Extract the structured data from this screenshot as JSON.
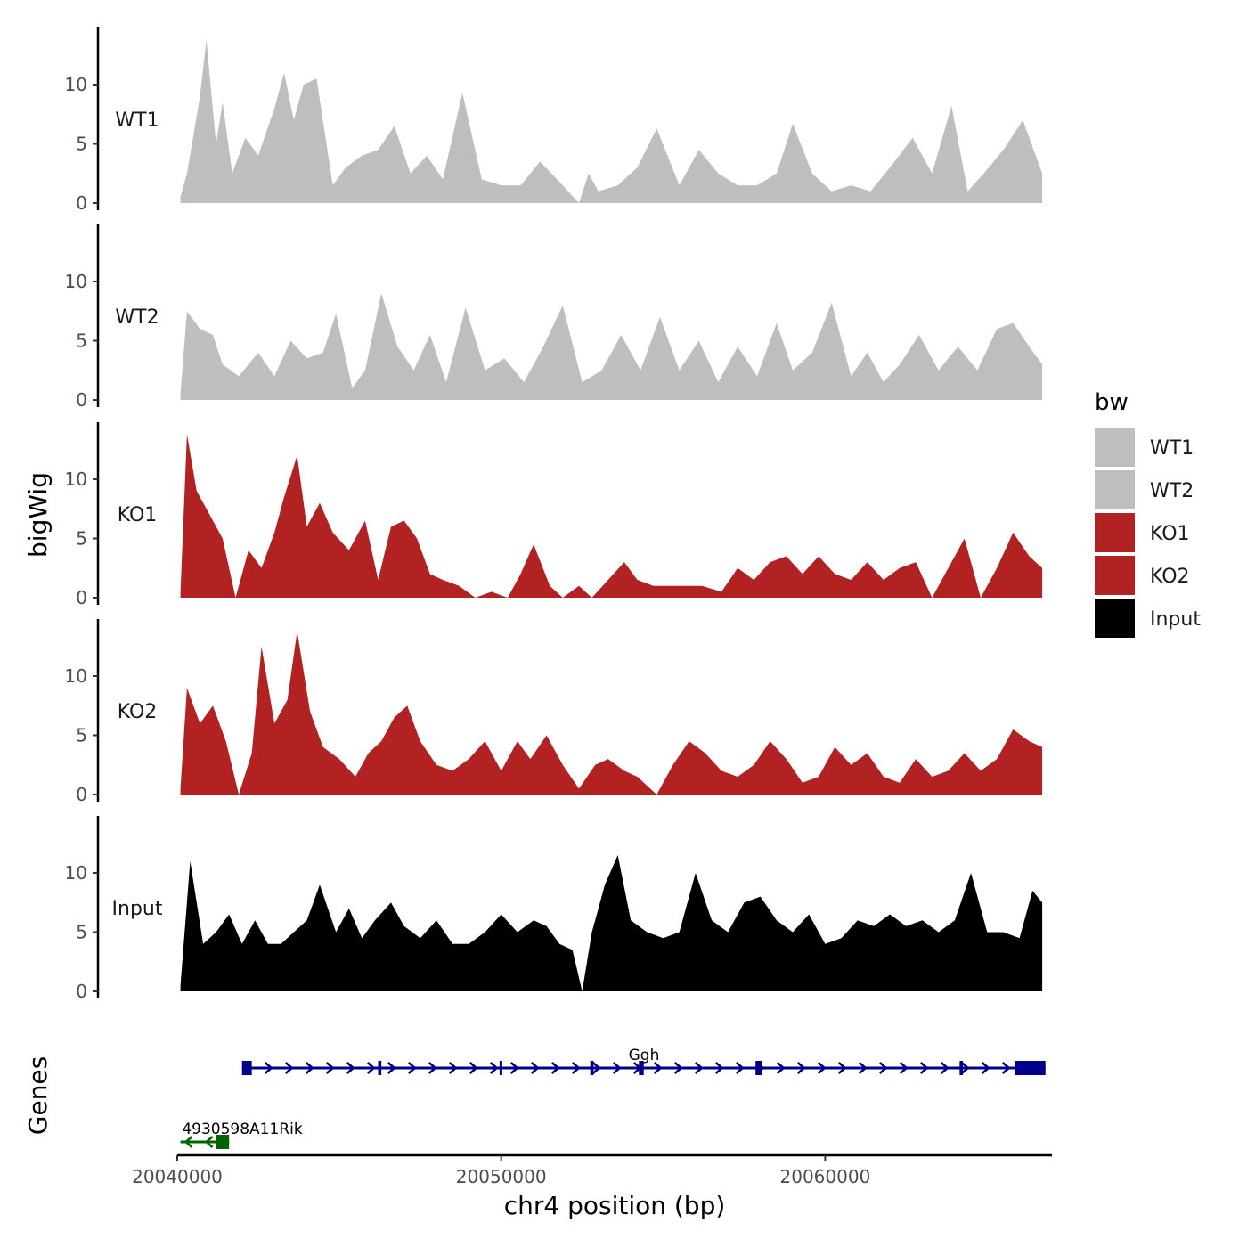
{
  "chart_data": {
    "type": "area",
    "title": "",
    "xlabel": "chr4 position (bp)",
    "ylabel": "bigWig",
    "genes_label": "Genes",
    "xlim": [
      20040000,
      20067000
    ],
    "ylim": [
      0,
      14.5
    ],
    "x_ticks": [
      20040000,
      20050000,
      20060000
    ],
    "x_tick_labels": [
      "20040000",
      "20050000",
      "20060000"
    ],
    "y_ticks": [
      0,
      5,
      10
    ],
    "y_tick_labels": [
      "0",
      "5",
      "10"
    ],
    "legend": {
      "title": "bw",
      "placement": "right",
      "entries": [
        {
          "label": "WT1",
          "color": "#bebebe"
        },
        {
          "label": "WT2",
          "color": "#bebebe"
        },
        {
          "label": "KO1",
          "color": "#b22222"
        },
        {
          "label": "KO2",
          "color": "#b22222"
        },
        {
          "label": "Input",
          "color": "#000000"
        }
      ]
    },
    "series": [
      {
        "name": "WT1",
        "color": "#bebebe",
        "x": [
          20040100,
          20040300,
          20040700,
          20040900,
          20041200,
          20041400,
          20041700,
          20042100,
          20042500,
          20043000,
          20043300,
          20043600,
          20043900,
          20044300,
          20044800,
          20045200,
          20045700,
          20046200,
          20046700,
          20047200,
          20047700,
          20048200,
          20048800,
          20049400,
          20050000,
          20050600,
          20051200,
          20051900,
          20052400,
          20052700,
          20053000,
          20053600,
          20054200,
          20054800,
          20055500,
          20056100,
          20056700,
          20057300,
          20057900,
          20058500,
          20059000,
          20059600,
          20060200,
          20060800,
          20061400,
          20062000,
          20062700,
          20063300,
          20063900,
          20064400,
          20064900,
          20065500,
          20066100,
          20066700
        ],
        "values": [
          0.5,
          2.5,
          9,
          13.8,
          5,
          8.5,
          2.5,
          5.5,
          4,
          8,
          11,
          7,
          10,
          10.5,
          1.5,
          3,
          4,
          4.5,
          6.5,
          2.5,
          4,
          2,
          9.3,
          2,
          1.5,
          1.5,
          3.5,
          1.5,
          0,
          2.5,
          1,
          1.5,
          3,
          6.3,
          1.5,
          4.5,
          2.5,
          1.5,
          1.5,
          2.5,
          6.7,
          2.5,
          1,
          1.5,
          1,
          3,
          5.5,
          2.5,
          8.2,
          1,
          2.5,
          4.5,
          7,
          2.5
        ]
      },
      {
        "name": "WT2",
        "color": "#bebebe",
        "x": [
          20040100,
          20040300,
          20040700,
          20041100,
          20041400,
          20041900,
          20042500,
          20043000,
          20043500,
          20044000,
          20044500,
          20044900,
          20045400,
          20045800,
          20046300,
          20046800,
          20047300,
          20047800,
          20048300,
          20048900,
          20049500,
          20050100,
          20050700,
          20051300,
          20051900,
          20052500,
          20053100,
          20053700,
          20054300,
          20054900,
          20055500,
          20056100,
          20056700,
          20057300,
          20057900,
          20058500,
          20059000,
          20059600,
          20060200,
          20060800,
          20061300,
          20061800,
          20062300,
          20062900,
          20063500,
          20064100,
          20064700,
          20065300,
          20065800,
          20066300,
          20066700
        ],
        "values": [
          0.5,
          7.5,
          6,
          5.5,
          3,
          2,
          4,
          2,
          5,
          3.5,
          4,
          7.3,
          1,
          2.5,
          9,
          4.5,
          2.5,
          5.5,
          1.5,
          7.8,
          2.5,
          3.5,
          1.5,
          4.5,
          8,
          1.5,
          2.5,
          5.5,
          2.5,
          7,
          2.5,
          5,
          1.5,
          4.5,
          2,
          6.5,
          2.5,
          4,
          8.2,
          2,
          4,
          1.5,
          3,
          5.5,
          2.5,
          4.5,
          2.5,
          6,
          6.5,
          4.5,
          3
        ]
      },
      {
        "name": "KO1",
        "color": "#b22222",
        "x": [
          20040100,
          20040300,
          20040600,
          20041000,
          20041400,
          20041800,
          20042200,
          20042600,
          20043000,
          20043300,
          20043700,
          20044000,
          20044400,
          20044800,
          20045300,
          20045800,
          20046200,
          20046600,
          20047000,
          20047400,
          20047800,
          20048200,
          20048700,
          20049200,
          20049700,
          20050200,
          20050600,
          20051000,
          20051500,
          20051900,
          20052400,
          20052800,
          20053300,
          20053800,
          20054200,
          20054700,
          20055200,
          20055700,
          20056200,
          20056800,
          20057300,
          20057800,
          20058300,
          20058800,
          20059300,
          20059800,
          20060300,
          20060800,
          20061300,
          20061800,
          20062300,
          20062800,
          20063300,
          20063800,
          20064300,
          20064800,
          20065300,
          20065800,
          20066300,
          20066700
        ],
        "values": [
          0.5,
          13.8,
          9,
          7,
          5,
          0,
          4,
          2.5,
          5.5,
          8.5,
          12,
          6,
          8,
          5.5,
          4,
          6.5,
          1.5,
          6,
          6.5,
          5,
          2,
          1.5,
          1,
          0,
          0.5,
          0,
          2,
          4.5,
          1,
          0,
          1,
          0,
          1.5,
          3,
          1.5,
          1,
          1,
          1,
          1,
          0.5,
          2.5,
          1.5,
          3,
          3.5,
          2,
          3.5,
          2,
          1.5,
          3,
          1.5,
          2.5,
          3,
          0,
          2.5,
          5,
          0,
          2.5,
          5.5,
          3.5,
          2.5
        ]
      },
      {
        "name": "KO2",
        "color": "#b22222",
        "x": [
          20040100,
          20040300,
          20040700,
          20041100,
          20041500,
          20041900,
          20042300,
          20042600,
          20043000,
          20043400,
          20043700,
          20044100,
          20044500,
          20045000,
          20045500,
          20045900,
          20046300,
          20046700,
          20047100,
          20047500,
          20048000,
          20048500,
          20049000,
          20049500,
          20050000,
          20050500,
          20050900,
          20051400,
          20051900,
          20052400,
          20052900,
          20053300,
          20053800,
          20054200,
          20054800,
          20055300,
          20055800,
          20056300,
          20056800,
          20057300,
          20057800,
          20058300,
          20058800,
          20059300,
          20059800,
          20060300,
          20060800,
          20061300,
          20061800,
          20062300,
          20062800,
          20063300,
          20063800,
          20064300,
          20064800,
          20065300,
          20065800,
          20066300,
          20066700
        ],
        "values": [
          0.5,
          9,
          6,
          7.5,
          4.5,
          0,
          3.5,
          12.5,
          6,
          8,
          13.8,
          7,
          4,
          3,
          1.5,
          3.5,
          4.5,
          6.5,
          7.5,
          4.5,
          2.5,
          2,
          3,
          4.5,
          2,
          4.5,
          3,
          5,
          2.5,
          0.5,
          2.5,
          3,
          2,
          1.5,
          0,
          2.5,
          4.5,
          3.5,
          2,
          1.5,
          2.5,
          4.5,
          3,
          1,
          1.5,
          4,
          2.5,
          3.5,
          1.5,
          1,
          3,
          1.5,
          2,
          3.5,
          2,
          3,
          5.5,
          4.5,
          4
        ]
      },
      {
        "name": "Input",
        "color": "#000000",
        "x": [
          20040100,
          20040400,
          20040800,
          20041200,
          20041600,
          20042000,
          20042400,
          20042800,
          20043200,
          20043600,
          20044000,
          20044400,
          20044900,
          20045300,
          20045700,
          20046100,
          20046600,
          20047000,
          20047500,
          20048000,
          20048500,
          20049000,
          20049500,
          20050000,
          20050500,
          20051000,
          20051400,
          20051800,
          20052200,
          20052500,
          20052800,
          20053200,
          20053600,
          20054000,
          20054500,
          20055000,
          20055500,
          20056000,
          20056500,
          20057000,
          20057500,
          20058000,
          20058500,
          20059000,
          20059500,
          20060000,
          20060500,
          20061000,
          20061500,
          20062000,
          20062500,
          20063000,
          20063500,
          20064000,
          20064500,
          20065000,
          20065500,
          20066000,
          20066400,
          20066700
        ],
        "values": [
          0.5,
          11,
          4,
          5,
          6.5,
          4,
          6,
          4,
          4,
          5,
          6,
          9,
          5,
          7,
          4.5,
          6,
          7.5,
          5.5,
          4.5,
          6,
          4,
          4,
          5,
          6.5,
          5,
          6,
          5.5,
          4,
          3.5,
          0,
          5,
          9,
          11.5,
          6,
          5,
          4.5,
          5,
          10,
          6,
          5,
          7.5,
          8,
          6,
          5,
          6.5,
          4,
          4.5,
          6,
          5.5,
          6.5,
          5.5,
          6,
          5,
          6,
          10,
          5,
          5,
          4.5,
          8.5,
          7.5
        ]
      }
    ],
    "genes": [
      {
        "name": "Ggh",
        "strand": "+",
        "color": "#00008b",
        "start": 20042000,
        "end": 20066800,
        "exons": [
          [
            20042000,
            20042300
          ],
          [
            20046200,
            20046300
          ],
          [
            20049950,
            20050000
          ],
          [
            20052750,
            20052850
          ],
          [
            20054250,
            20054400
          ],
          [
            20057850,
            20058050
          ],
          [
            20064150,
            20064250
          ],
          [
            20065850,
            20066800
          ]
        ]
      },
      {
        "name": "4930598A11Rik",
        "strand": "-",
        "color": "#006400",
        "start": 20040100,
        "end": 20041600,
        "exons": [
          [
            20041200,
            20041600
          ]
        ]
      }
    ]
  }
}
